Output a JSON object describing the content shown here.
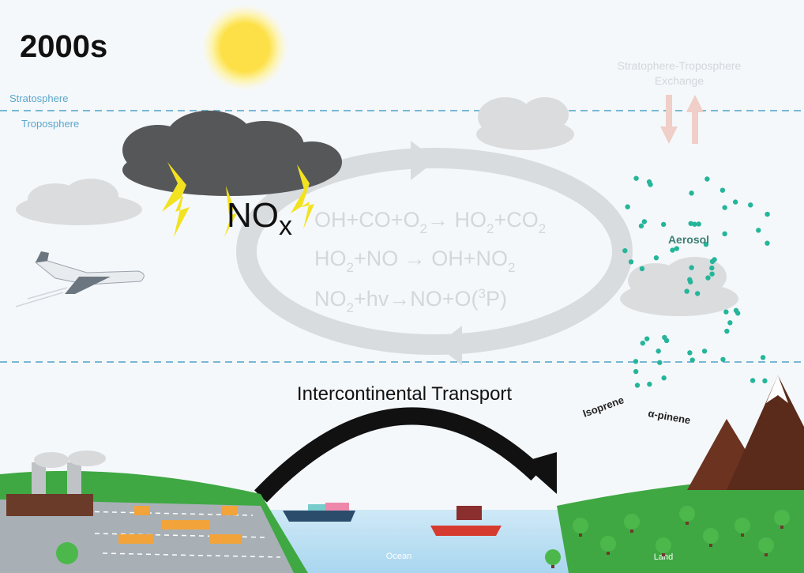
{
  "header": {
    "title": "2000s"
  },
  "layers": {
    "upper": "Stratosphere",
    "lower": "Troposphere"
  },
  "exchange": [
    "Stratophere-Troposphere",
    "Exchange"
  ],
  "nox": [
    "NO",
    "x"
  ],
  "reactions": [
    [
      "OH+CO+O",
      "2",
      "→ HO",
      "2",
      "+CO",
      "2"
    ],
    [
      "HO",
      "2",
      "+NO → OH+NO",
      "2"
    ],
    [
      "NO",
      "2",
      "+hv→NO+O(",
      "3",
      "P)"
    ]
  ],
  "aerosol": "Aerosol",
  "transport": "Intercontinental Transport",
  "isoprene": "Isoprene",
  "pinene": "α-pinene",
  "ocean": "Ocean",
  "land": "Land"
}
